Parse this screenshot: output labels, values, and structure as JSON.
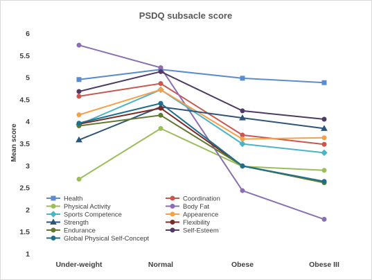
{
  "chart_data": {
    "type": "line",
    "title": "PSDQ subsacle score",
    "xlabel": "",
    "ylabel": "Mean score",
    "ylim": [
      1,
      6
    ],
    "yticks": [
      "1",
      "1.5",
      "2",
      "2.5",
      "3",
      "3.5",
      "4",
      "4.5",
      "5",
      "5.5",
      "6"
    ],
    "categories": [
      "Under-weight",
      "Normal",
      "Obese",
      "Obese III"
    ],
    "grid": false,
    "legend_position": "bottom-inside",
    "series": [
      {
        "name": "Health",
        "color": "#5b8ccf",
        "marker": "square",
        "values": [
          4.95,
          5.18,
          4.98,
          4.88
        ]
      },
      {
        "name": "Coordination",
        "color": "#c9574e",
        "marker": "circle",
        "values": [
          4.57,
          4.86,
          3.69,
          3.48
        ]
      },
      {
        "name": "Physical Activity",
        "color": "#9bbd5a",
        "marker": "circle",
        "values": [
          2.69,
          3.84,
          2.98,
          2.89
        ]
      },
      {
        "name": "Body Fat",
        "color": "#8b6fb3",
        "marker": "circle",
        "values": [
          5.73,
          5.22,
          2.43,
          1.78
        ]
      },
      {
        "name": "Sports Competence",
        "color": "#4bb4c6",
        "marker": "diamond",
        "values": [
          3.93,
          4.72,
          3.49,
          3.29
        ]
      },
      {
        "name": "Appearence",
        "color": "#f5a04a",
        "marker": "circle",
        "values": [
          4.15,
          4.72,
          3.6,
          3.63
        ]
      },
      {
        "name": "Strength",
        "color": "#2e5578",
        "marker": "triangle",
        "values": [
          3.58,
          4.33,
          4.08,
          3.84
        ]
      },
      {
        "name": "Flexibility",
        "color": "#7b2b28",
        "marker": "circle",
        "values": [
          3.94,
          4.3,
          2.99,
          2.62
        ]
      },
      {
        "name": "Endurance",
        "color": "#5f7a2f",
        "marker": "circle",
        "values": [
          3.9,
          4.14,
          2.99,
          2.61
        ]
      },
      {
        "name": "Self-Esteem",
        "color": "#4e3a63",
        "marker": "circle",
        "values": [
          4.68,
          5.13,
          4.24,
          4.05
        ]
      },
      {
        "name": "Global Physical Self-Concept",
        "color": "#1f6f8b",
        "marker": "circle",
        "values": [
          3.96,
          4.41,
          2.99,
          2.64
        ]
      }
    ]
  }
}
